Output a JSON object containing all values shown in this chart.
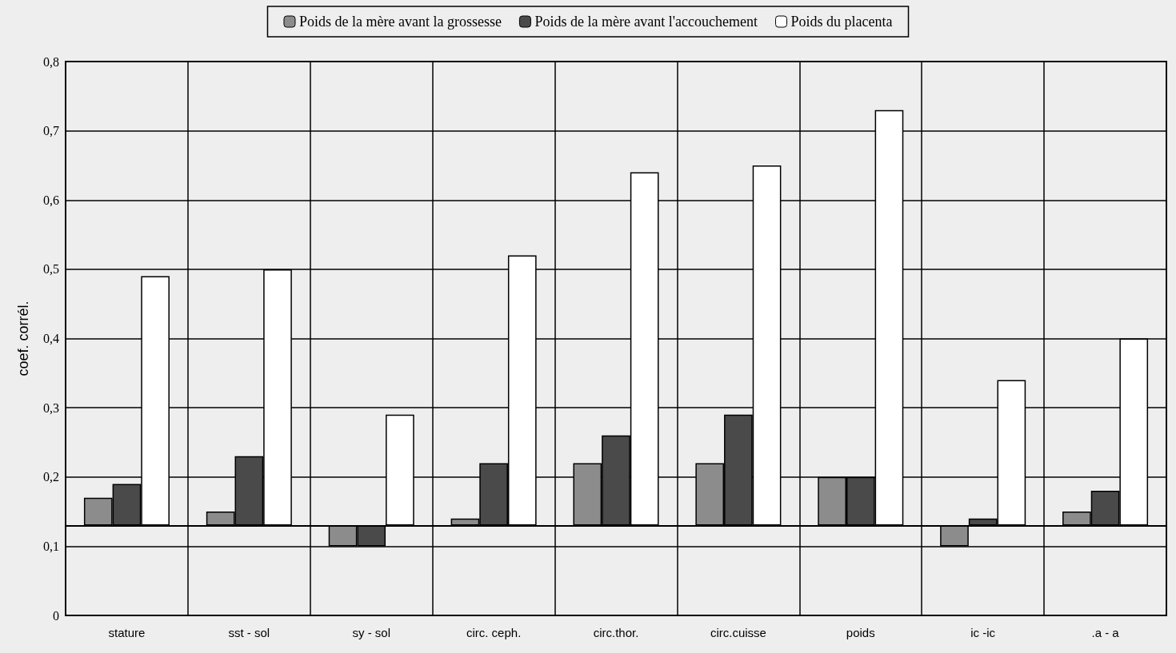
{
  "chart_data": {
    "type": "bar",
    "ylabel": "coef. corrél.",
    "categories": [
      "stature",
      "sst - sol",
      "sy - sol",
      "circ. ceph.",
      "circ.thor.",
      "circ.cuisse",
      "poids",
      "ic -ic",
      ".a - a"
    ],
    "series": [
      {
        "name": "Poids de la mère avant la grossesse",
        "color": "#8c8c8c",
        "base": [
          0.13,
          0.13,
          0.13,
          0.13,
          0.13,
          0.13,
          0.13,
          0.13,
          0.13
        ],
        "values": [
          0.04,
          0.02,
          -0.03,
          0.01,
          0.09,
          0.09,
          0.07,
          -0.03,
          0.02
        ]
      },
      {
        "name": "Poids de la mère avant l'accouchement",
        "color": "#4a4a4a",
        "base": [
          0.13,
          0.13,
          0.13,
          0.13,
          0.13,
          0.13,
          0.13,
          0.13,
          0.13
        ],
        "values": [
          0.06,
          0.1,
          -0.03,
          0.09,
          0.13,
          0.16,
          0.07,
          0.01,
          0.05
        ]
      },
      {
        "name": "Poids du placenta",
        "color": "#ffffff",
        "base": [
          0.13,
          0.13,
          0.13,
          0.13,
          0.13,
          0.13,
          0.13,
          0.13,
          0.13
        ],
        "values": [
          0.36,
          0.37,
          0.16,
          0.39,
          0.51,
          0.52,
          0.6,
          0.21,
          0.27
        ]
      }
    ],
    "ylim": [
      0,
      0.8
    ],
    "yticks": [
      {
        "value": 0,
        "label": "0"
      },
      {
        "value": 0.1,
        "label": "0,1"
      },
      {
        "value": 0.2,
        "label": "0,2"
      },
      {
        "value": 0.3,
        "label": "0,3"
      },
      {
        "value": 0.4,
        "label": "0,4"
      },
      {
        "value": 0.5,
        "label": "0,5"
      },
      {
        "value": 0.6,
        "label": "0,6"
      },
      {
        "value": 0.7,
        "label": "0,7"
      },
      {
        "value": 0.8,
        "label": "0,8"
      }
    ],
    "ref_lines": [
      {
        "axis": "y",
        "value": 0.13,
        "color": "#000000"
      }
    ],
    "grid": true,
    "legend": "top"
  }
}
